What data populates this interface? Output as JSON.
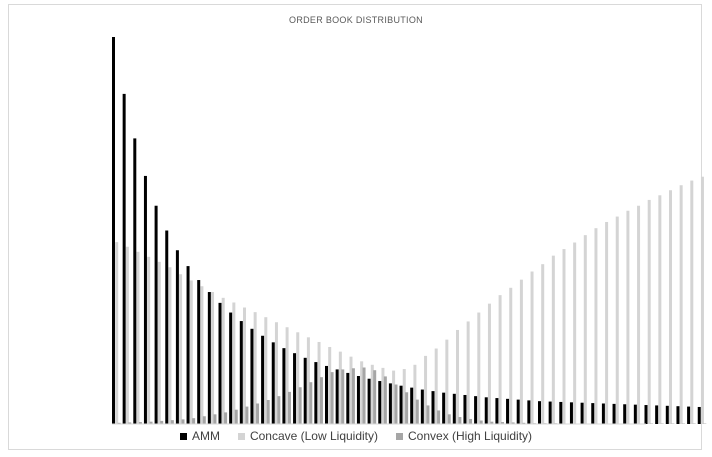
{
  "chart_data": {
    "type": "bar",
    "title": "ORDER BOOK DISTRIBUTION",
    "xlabel": "",
    "ylabel": "",
    "ylim": [
      0,
      100
    ],
    "grid": false,
    "legend": "bottom",
    "series": [
      {
        "name": "AMM",
        "color": "#000000",
        "values": [
          100,
          85.3,
          73.8,
          64.1,
          56.4,
          50,
          44.9,
          40.8,
          37.2,
          34.1,
          31.3,
          28.8,
          26.6,
          24.6,
          22.8,
          21.1,
          19.6,
          18.3,
          17.1,
          16,
          15,
          14.1,
          13.2,
          12.4,
          11.7,
          11.1,
          10.5,
          9.9,
          9.4,
          8.9,
          8.5,
          8.1,
          7.8,
          7.5,
          7.2,
          6.9,
          6.7,
          6.5,
          6.3,
          6.1,
          5.9,
          5.8,
          5.7,
          5.6,
          5.5,
          5.4,
          5.3,
          5.2,
          5.1,
          5.0,
          4.9,
          4.8,
          4.7,
          4.6,
          4.5,
          4.4
        ]
      },
      {
        "name": "Concave (Low Liquidity)",
        "color": "#d4d4d4",
        "values": [
          47,
          45.8,
          44.5,
          43.2,
          41.9,
          40.5,
          38.7,
          37.1,
          35.6,
          34.1,
          32.6,
          31.4,
          30.1,
          28.9,
          27.6,
          26.3,
          25,
          23.7,
          22.4,
          21.2,
          19.9,
          18.7,
          17.4,
          16.2,
          15.3,
          14.5,
          13.8,
          14.2,
          15.3,
          17.6,
          19.5,
          21.8,
          24.3,
          26.5,
          28.8,
          31.1,
          33.3,
          35.2,
          37.3,
          39.4,
          41.3,
          43.5,
          45.2,
          46.9,
          48.8,
          50.6,
          52.2,
          53.6,
          55.1,
          56.4,
          57.9,
          59.1,
          60.4,
          61.7,
          62.9,
          63.9
        ]
      },
      {
        "name": "Convex (High Liquidity)",
        "color": "#a6a6a6",
        "values": [
          0.3,
          0.4,
          0.5,
          0.6,
          0.8,
          1,
          1.2,
          1.5,
          2,
          2.5,
          3,
          3.7,
          4.5,
          5.3,
          6.2,
          7.2,
          8.3,
          9.5,
          10.8,
          12.1,
          13.4,
          14.1,
          14.4,
          14.6,
          13.9,
          12.3,
          10.2,
          8.2,
          6.3,
          4.8,
          3.5,
          2.5,
          1.8,
          1.3,
          0.9,
          0.6,
          0.5,
          0.4,
          0.3,
          0.2,
          0.2,
          0.2,
          0.1,
          0.1,
          0.1,
          0.1,
          0.1,
          0.1,
          0.1,
          0.1,
          0.1,
          0.1,
          0.1,
          0.1,
          0.1,
          0.1
        ]
      }
    ]
  }
}
